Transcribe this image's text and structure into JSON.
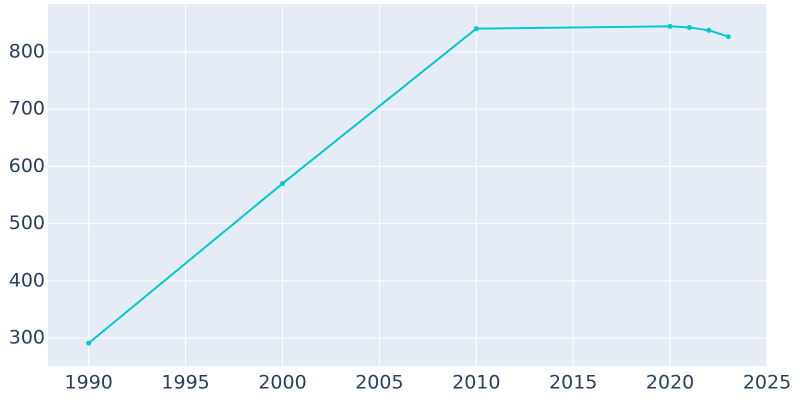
{
  "chart_data": {
    "type": "line",
    "x": [
      1990,
      2000,
      2010,
      2020,
      2021,
      2022,
      2023
    ],
    "series": [
      {
        "color": "#00c9d2",
        "values": [
          291,
          570,
          841,
          845,
          843,
          838,
          827
        ]
      }
    ],
    "xlim": [
      1987.9,
      2025
    ],
    "ylim": [
      251,
      884
    ],
    "xticks": [
      1990,
      1995,
      2000,
      2005,
      2010,
      2015,
      2020,
      2025
    ],
    "yticks": [
      300,
      400,
      500,
      600,
      700,
      800
    ],
    "grid": true
  }
}
